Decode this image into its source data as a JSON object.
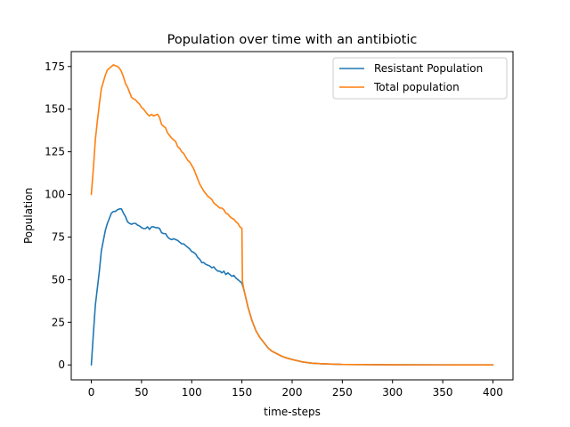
{
  "chart_data": {
    "type": "line",
    "title": "Population over time with an antibiotic",
    "xlabel": "time-steps",
    "ylabel": "Population",
    "xlim": [
      -20,
      420
    ],
    "ylim": [
      -8.75,
      183.75
    ],
    "xticks": [
      0,
      50,
      100,
      150,
      200,
      250,
      300,
      350,
      400
    ],
    "yticks": [
      0,
      25,
      50,
      75,
      100,
      125,
      150,
      175
    ],
    "grid": false,
    "legend_position": "top-right",
    "series": [
      {
        "name": "Resistant Population",
        "color": "#1f77b4",
        "points": [
          [
            0,
            0
          ],
          [
            2,
            18
          ],
          [
            4,
            35
          ],
          [
            6,
            45
          ],
          [
            8,
            55
          ],
          [
            10,
            67
          ],
          [
            12,
            73
          ],
          [
            14,
            79
          ],
          [
            16,
            83
          ],
          [
            18,
            86
          ],
          [
            20,
            89
          ],
          [
            22,
            90
          ],
          [
            24,
            90
          ],
          [
            26,
            91
          ],
          [
            28,
            91.5
          ],
          [
            30,
            91.5
          ],
          [
            32,
            89
          ],
          [
            34,
            87
          ],
          [
            36,
            84
          ],
          [
            38,
            83
          ],
          [
            40,
            82.5
          ],
          [
            42,
            83
          ],
          [
            44,
            83
          ],
          [
            46,
            82
          ],
          [
            48,
            81.5
          ],
          [
            50,
            80.5
          ],
          [
            52,
            80
          ],
          [
            54,
            80
          ],
          [
            56,
            81
          ],
          [
            58,
            79.5
          ],
          [
            60,
            81
          ],
          [
            62,
            81
          ],
          [
            64,
            80.5
          ],
          [
            66,
            80.5
          ],
          [
            68,
            80
          ],
          [
            70,
            77.5
          ],
          [
            72,
            77
          ],
          [
            74,
            77
          ],
          [
            76,
            75
          ],
          [
            78,
            74
          ],
          [
            80,
            73.5
          ],
          [
            82,
            74
          ],
          [
            84,
            73.5
          ],
          [
            86,
            73
          ],
          [
            88,
            72
          ],
          [
            90,
            71
          ],
          [
            92,
            71
          ],
          [
            94,
            70
          ],
          [
            96,
            69
          ],
          [
            98,
            68
          ],
          [
            100,
            66.5
          ],
          [
            102,
            66
          ],
          [
            104,
            65
          ],
          [
            106,
            63
          ],
          [
            108,
            62
          ],
          [
            110,
            60
          ],
          [
            112,
            60
          ],
          [
            114,
            59
          ],
          [
            116,
            58.5
          ],
          [
            118,
            58
          ],
          [
            120,
            57
          ],
          [
            122,
            57.5
          ],
          [
            124,
            56
          ],
          [
            126,
            55
          ],
          [
            128,
            55
          ],
          [
            130,
            54
          ],
          [
            132,
            55
          ],
          [
            134,
            53
          ],
          [
            136,
            54
          ],
          [
            138,
            53
          ],
          [
            140,
            52
          ],
          [
            142,
            52.5
          ],
          [
            144,
            51
          ],
          [
            146,
            50
          ],
          [
            148,
            49
          ],
          [
            150,
            48
          ],
          [
            152,
            44
          ],
          [
            154,
            39
          ],
          [
            156,
            34
          ],
          [
            158,
            30
          ],
          [
            160,
            26
          ],
          [
            162,
            23
          ],
          [
            164,
            20
          ],
          [
            166,
            18
          ],
          [
            168,
            16
          ],
          [
            170,
            14.5
          ],
          [
            172,
            13
          ],
          [
            174,
            11.5
          ],
          [
            176,
            10
          ],
          [
            178,
            9
          ],
          [
            180,
            8
          ],
          [
            185,
            6.5
          ],
          [
            190,
            5
          ],
          [
            195,
            4
          ],
          [
            200,
            3.2
          ],
          [
            205,
            2.5
          ],
          [
            210,
            1.8
          ],
          [
            215,
            1.4
          ],
          [
            220,
            1
          ],
          [
            230,
            0.7
          ],
          [
            240,
            0.5
          ],
          [
            250,
            0.3
          ],
          [
            270,
            0.2
          ],
          [
            300,
            0.1
          ],
          [
            350,
            0.05
          ],
          [
            400,
            0
          ]
        ]
      },
      {
        "name": "Total population",
        "color": "#ff7f0e",
        "points": [
          [
            0,
            100
          ],
          [
            2,
            115
          ],
          [
            4,
            132
          ],
          [
            6,
            143
          ],
          [
            8,
            153
          ],
          [
            10,
            162
          ],
          [
            12,
            166
          ],
          [
            14,
            170
          ],
          [
            16,
            173
          ],
          [
            18,
            174
          ],
          [
            20,
            175
          ],
          [
            22,
            176
          ],
          [
            24,
            175.5
          ],
          [
            26,
            175
          ],
          [
            28,
            174
          ],
          [
            30,
            172
          ],
          [
            32,
            169
          ],
          [
            34,
            165
          ],
          [
            36,
            163
          ],
          [
            38,
            160
          ],
          [
            40,
            157
          ],
          [
            42,
            156
          ],
          [
            44,
            155.5
          ],
          [
            46,
            154
          ],
          [
            48,
            153
          ],
          [
            50,
            151
          ],
          [
            52,
            150
          ],
          [
            54,
            148.5
          ],
          [
            56,
            147
          ],
          [
            58,
            146
          ],
          [
            60,
            147
          ],
          [
            62,
            146
          ],
          [
            64,
            146.5
          ],
          [
            66,
            147
          ],
          [
            68,
            145
          ],
          [
            70,
            141
          ],
          [
            72,
            140
          ],
          [
            74,
            139
          ],
          [
            76,
            136
          ],
          [
            78,
            134.5
          ],
          [
            80,
            133
          ],
          [
            82,
            132
          ],
          [
            84,
            131
          ],
          [
            86,
            128
          ],
          [
            88,
            127
          ],
          [
            90,
            125
          ],
          [
            92,
            124
          ],
          [
            94,
            122
          ],
          [
            96,
            120
          ],
          [
            98,
            119
          ],
          [
            100,
            117
          ],
          [
            102,
            115
          ],
          [
            104,
            112
          ],
          [
            106,
            109
          ],
          [
            108,
            106
          ],
          [
            110,
            104
          ],
          [
            112,
            102
          ],
          [
            114,
            100.5
          ],
          [
            116,
            99
          ],
          [
            118,
            98
          ],
          [
            120,
            97
          ],
          [
            122,
            95
          ],
          [
            124,
            94
          ],
          [
            126,
            93
          ],
          [
            128,
            92
          ],
          [
            130,
            92
          ],
          [
            132,
            91
          ],
          [
            134,
            89
          ],
          [
            136,
            88.5
          ],
          [
            138,
            87
          ],
          [
            140,
            86
          ],
          [
            142,
            85.5
          ],
          [
            144,
            84
          ],
          [
            146,
            83
          ],
          [
            148,
            81
          ],
          [
            150,
            80
          ],
          [
            150.5,
            49
          ],
          [
            152,
            44
          ],
          [
            154,
            39
          ],
          [
            156,
            34
          ],
          [
            158,
            30
          ],
          [
            160,
            26
          ],
          [
            162,
            23
          ],
          [
            164,
            20
          ],
          [
            166,
            18
          ],
          [
            168,
            16
          ],
          [
            170,
            14.5
          ],
          [
            172,
            13
          ],
          [
            174,
            11.5
          ],
          [
            176,
            10
          ],
          [
            178,
            9
          ],
          [
            180,
            8
          ],
          [
            185,
            6.5
          ],
          [
            190,
            5
          ],
          [
            195,
            4
          ],
          [
            200,
            3.2
          ],
          [
            205,
            2.5
          ],
          [
            210,
            1.8
          ],
          [
            215,
            1.4
          ],
          [
            220,
            1
          ],
          [
            230,
            0.7
          ],
          [
            240,
            0.5
          ],
          [
            250,
            0.3
          ],
          [
            270,
            0.2
          ],
          [
            300,
            0.1
          ],
          [
            350,
            0.05
          ],
          [
            400,
            0
          ]
        ]
      }
    ]
  }
}
